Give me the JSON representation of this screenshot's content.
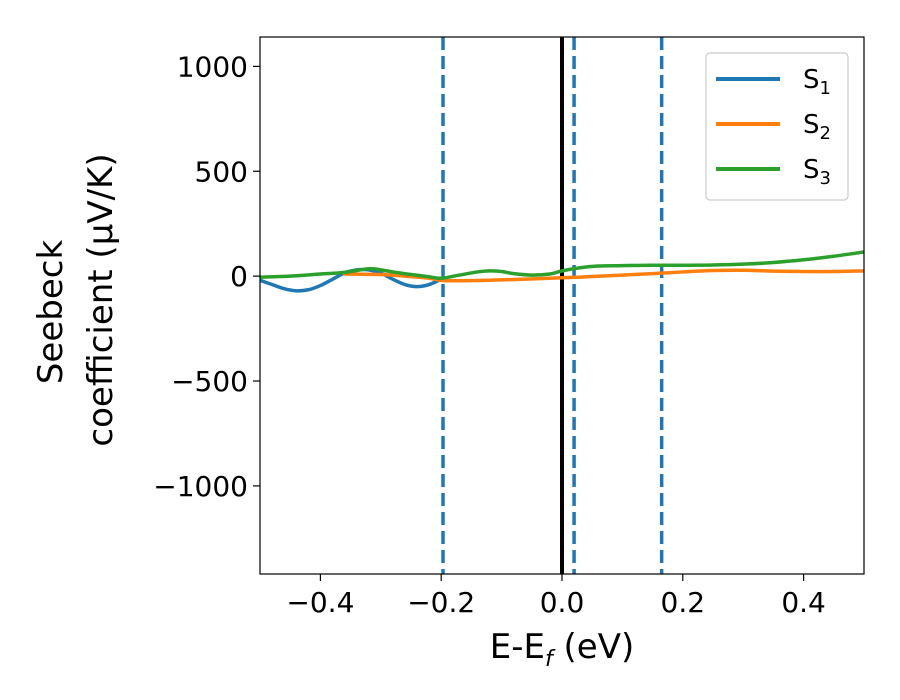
{
  "chart_data": {
    "type": "line",
    "title": "",
    "xlabel": "E-E_f (eV)",
    "xlabel_parts": {
      "main": "E-E",
      "sub": "f",
      "rest": " (eV)"
    },
    "ylabel_line1": "Seebeck",
    "ylabel_line2": "coefficient  (μV/K)",
    "xlim": [
      -0.5,
      0.5
    ],
    "ylim": [
      -1420,
      1140
    ],
    "xticks": [
      -0.4,
      -0.2,
      0.0,
      0.2,
      0.4
    ],
    "xtick_labels": [
      "−0.4",
      "−0.2",
      "0.0",
      "0.2",
      "0.4"
    ],
    "yticks": [
      1000,
      500,
      0,
      -500,
      -1000
    ],
    "ytick_labels": [
      "1000",
      "500",
      "0",
      "−500",
      "−1000"
    ],
    "grid": false,
    "legend_position": "top-right",
    "vertical_lines": [
      {
        "x": -0.197,
        "style": "dashed",
        "color": "#1f77b4"
      },
      {
        "x": 0.0,
        "style": "solid",
        "color": "#000000"
      },
      {
        "x": 0.02,
        "style": "dashed",
        "color": "#1f77b4"
      },
      {
        "x": 0.165,
        "style": "dashed",
        "color": "#1f77b4"
      }
    ],
    "series": [
      {
        "name": "S_1",
        "legend_main": "S",
        "legend_sub": "1",
        "color": "#1f77b4",
        "x": [
          -0.5,
          -0.48,
          -0.46,
          -0.44,
          -0.42,
          -0.4,
          -0.38,
          -0.36,
          -0.34,
          -0.32,
          -0.3,
          -0.28,
          -0.26,
          -0.24,
          -0.22,
          -0.2
        ],
        "y": [
          -20,
          -40,
          -60,
          -70,
          -65,
          -45,
          -15,
          15,
          30,
          30,
          15,
          -15,
          -40,
          -50,
          -40,
          -15
        ]
      },
      {
        "name": "S_2",
        "legend_main": "S",
        "legend_sub": "2",
        "color": "#ff7f0e",
        "x": [
          -0.36,
          -0.3,
          -0.26,
          -0.22,
          -0.2,
          -0.17,
          -0.1,
          0.0,
          0.05,
          0.1,
          0.15,
          0.2,
          0.25,
          0.3,
          0.35,
          0.4,
          0.45,
          0.5
        ],
        "y": [
          10,
          8,
          0,
          -10,
          -20,
          -22,
          -18,
          -8,
          -2,
          5,
          12,
          20,
          27,
          28,
          24,
          22,
          22,
          25
        ]
      },
      {
        "name": "S_3",
        "legend_main": "S",
        "legend_sub": "3",
        "color": "#2ca02c",
        "x": [
          -0.5,
          -0.45,
          -0.4,
          -0.36,
          -0.32,
          -0.3,
          -0.28,
          -0.25,
          -0.22,
          -0.2,
          -0.17,
          -0.14,
          -0.12,
          -0.1,
          -0.08,
          -0.05,
          -0.02,
          0.0,
          0.03,
          0.06,
          0.1,
          0.15,
          0.2,
          0.25,
          0.3,
          0.35,
          0.4,
          0.45,
          0.5
        ],
        "y": [
          -5,
          0,
          10,
          18,
          35,
          30,
          20,
          8,
          -3,
          -10,
          5,
          20,
          25,
          22,
          12,
          5,
          10,
          25,
          40,
          48,
          50,
          52,
          52,
          53,
          57,
          65,
          78,
          95,
          115
        ]
      }
    ]
  }
}
